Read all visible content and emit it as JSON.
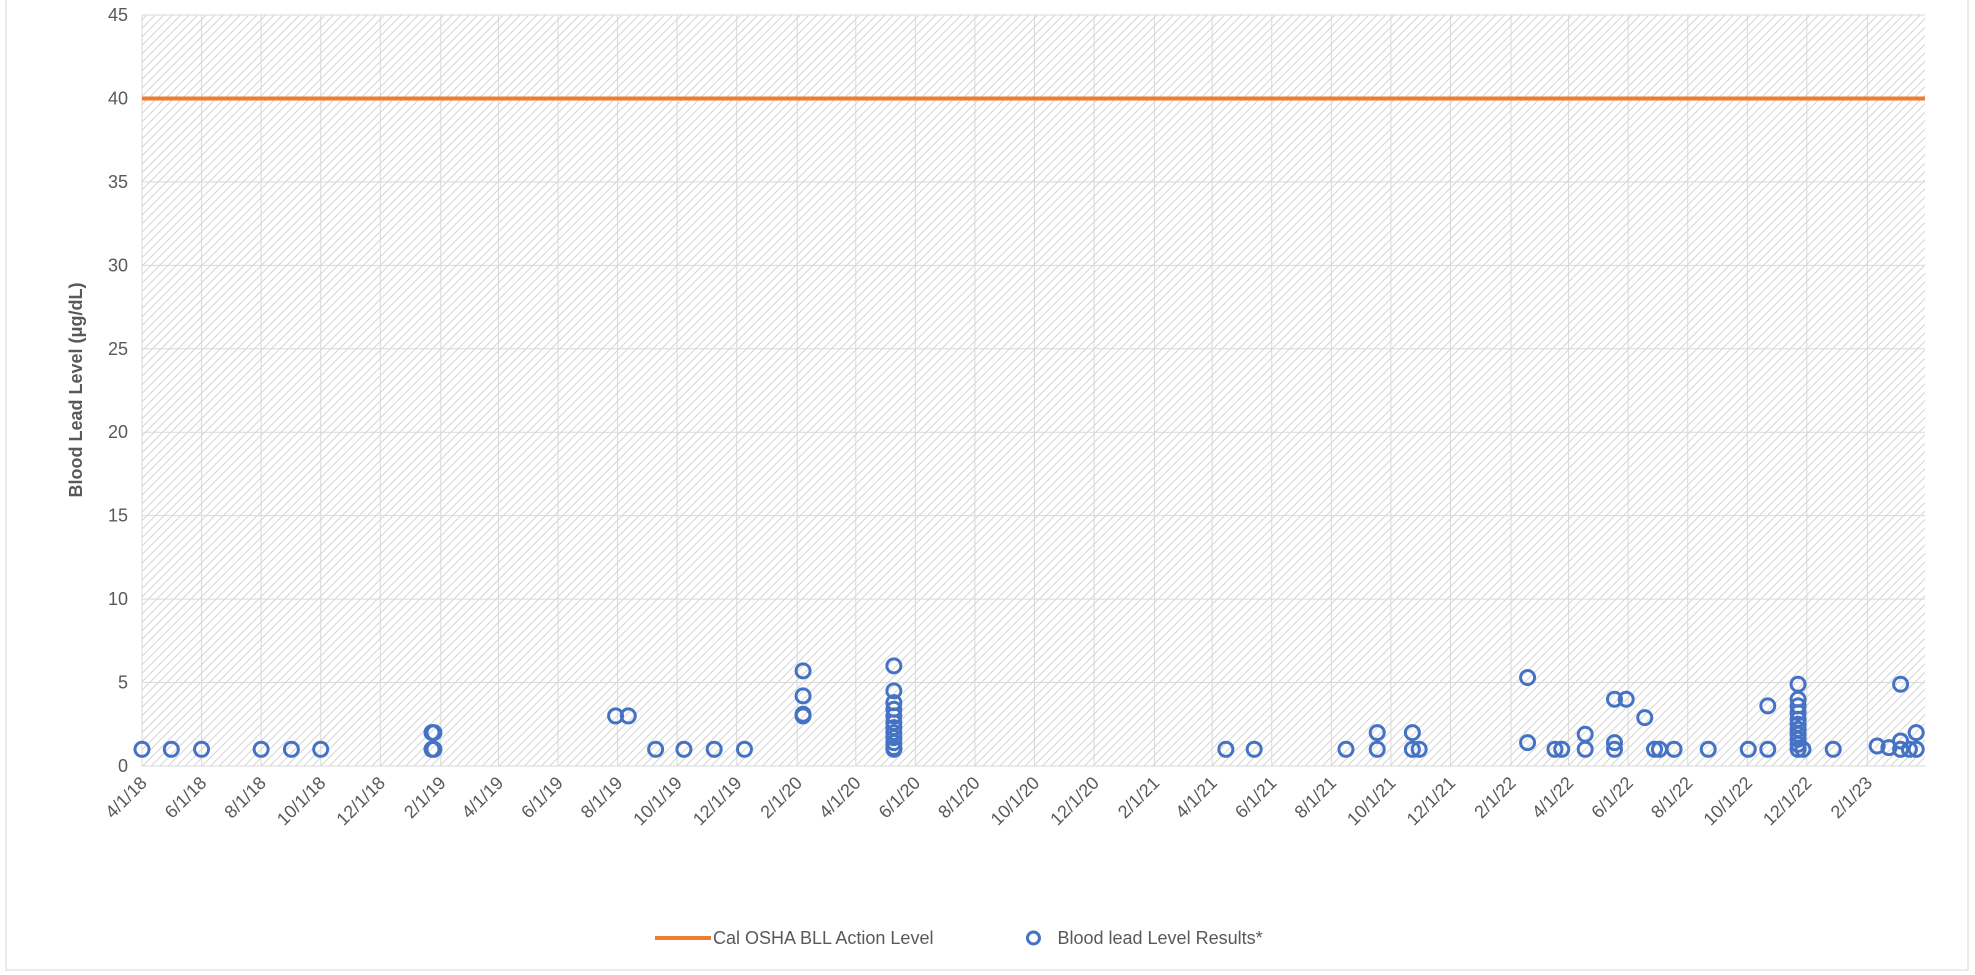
{
  "chart_data": {
    "type": "scatter",
    "y_label": "Blood Lead Level (μg/dL)",
    "xlim": [
      "2018-04-01",
      "2023-04-01"
    ],
    "xticks": [
      {
        "value": "2018-04-01",
        "label": "4/1/18"
      },
      {
        "value": "2018-06-01",
        "label": "6/1/18"
      },
      {
        "value": "2018-08-01",
        "label": "8/1/18"
      },
      {
        "value": "2018-10-01",
        "label": "10/1/18"
      },
      {
        "value": "2018-12-01",
        "label": "12/1/18"
      },
      {
        "value": "2019-02-01",
        "label": "2/1/19"
      },
      {
        "value": "2019-04-01",
        "label": "4/1/19"
      },
      {
        "value": "2019-06-01",
        "label": "6/1/19"
      },
      {
        "value": "2019-08-01",
        "label": "8/1/19"
      },
      {
        "value": "2019-10-01",
        "label": "10/1/19"
      },
      {
        "value": "2019-12-01",
        "label": "12/1/19"
      },
      {
        "value": "2020-02-01",
        "label": "2/1/20"
      },
      {
        "value": "2020-04-01",
        "label": "4/1/20"
      },
      {
        "value": "2020-06-01",
        "label": "6/1/20"
      },
      {
        "value": "2020-08-01",
        "label": "8/1/20"
      },
      {
        "value": "2020-10-01",
        "label": "10/1/20"
      },
      {
        "value": "2020-12-01",
        "label": "12/1/20"
      },
      {
        "value": "2021-02-01",
        "label": "2/1/21"
      },
      {
        "value": "2021-04-01",
        "label": "4/1/21"
      },
      {
        "value": "2021-06-01",
        "label": "6/1/21"
      },
      {
        "value": "2021-08-01",
        "label": "8/1/21"
      },
      {
        "value": "2021-10-01",
        "label": "10/1/21"
      },
      {
        "value": "2021-12-01",
        "label": "12/1/21"
      },
      {
        "value": "2022-02-01",
        "label": "2/1/22"
      },
      {
        "value": "2022-04-01",
        "label": "4/1/22"
      },
      {
        "value": "2022-06-01",
        "label": "6/1/22"
      },
      {
        "value": "2022-08-01",
        "label": "8/1/22"
      },
      {
        "value": "2022-10-01",
        "label": "10/1/22"
      },
      {
        "value": "2022-12-01",
        "label": "12/1/22"
      },
      {
        "value": "2023-02-01",
        "label": "2/1/23"
      }
    ],
    "ylim": [
      0,
      45
    ],
    "yticks": [
      0,
      5,
      10,
      15,
      20,
      25,
      30,
      35,
      40,
      45
    ],
    "grid": true,
    "legend": "bottom",
    "series": [
      {
        "name": "Cal OSHA BLL Action Level",
        "type": "line",
        "color": "#ed7d31",
        "x": [
          "2018-04-01",
          "2023-04-01"
        ],
        "values": [
          40,
          40
        ]
      },
      {
        "name": "Blood lead Level Results*",
        "type": "scatter",
        "color": "#4472c4",
        "x": [
          "2018-04-01",
          "2018-05-01",
          "2018-06-01",
          "2018-08-01",
          "2018-09-01",
          "2018-10-01",
          "2019-01-23",
          "2019-01-23",
          "2019-01-25",
          "2019-01-25",
          "2019-07-30",
          "2019-08-12",
          "2019-09-09",
          "2019-10-08",
          "2019-11-08",
          "2019-12-09",
          "2020-02-07",
          "2020-02-07",
          "2020-02-07",
          "2020-02-07",
          "2020-05-10",
          "2020-05-10",
          "2020-05-10",
          "2020-05-10",
          "2020-05-10",
          "2020-05-10",
          "2020-05-10",
          "2020-05-10",
          "2020-05-10",
          "2020-05-10",
          "2020-05-10",
          "2020-05-10",
          "2021-04-15",
          "2021-05-14",
          "2021-08-16",
          "2021-09-17",
          "2021-09-17",
          "2021-10-23",
          "2021-10-23",
          "2021-10-30",
          "2022-02-18",
          "2022-02-18",
          "2022-03-18",
          "2022-03-25",
          "2022-04-18",
          "2022-04-18",
          "2022-05-18",
          "2022-05-18",
          "2022-05-18",
          "2022-05-30",
          "2022-06-18",
          "2022-06-28",
          "2022-07-03",
          "2022-07-18",
          "2022-08-22",
          "2022-10-02",
          "2022-10-22",
          "2022-10-22",
          "2022-11-22",
          "2022-11-22",
          "2022-11-22",
          "2022-11-22",
          "2022-11-22",
          "2022-11-22",
          "2022-11-22",
          "2022-11-22",
          "2022-11-22",
          "2022-11-22",
          "2022-11-22",
          "2022-11-27",
          "2022-12-28",
          "2023-02-11",
          "2023-02-23",
          "2023-03-07",
          "2023-03-07",
          "2023-03-07",
          "2023-03-16",
          "2023-03-23",
          "2023-03-23"
        ],
        "values": [
          1,
          1,
          1,
          1,
          1,
          1,
          2,
          1,
          2,
          1,
          3,
          3,
          1,
          1,
          1,
          1,
          5.7,
          4.2,
          3.0,
          3.1,
          6.0,
          4.5,
          3.8,
          3.4,
          3.0,
          2.6,
          2.3,
          2.0,
          1.7,
          1.4,
          1.1,
          1.0,
          1,
          1,
          1,
          2,
          1,
          2,
          1,
          1,
          5.3,
          1.4,
          1,
          1,
          1.9,
          1.0,
          4.0,
          1.4,
          1.0,
          4.0,
          2.9,
          1,
          1,
          1,
          1,
          1,
          3.6,
          1.0,
          4.9,
          4.0,
          3.6,
          3.2,
          2.8,
          2.5,
          2.2,
          1.9,
          1.6,
          1.3,
          1.0,
          1.0,
          1,
          1.2,
          1.1,
          1.0,
          1.5,
          4.9,
          1.0,
          2.0,
          1.0
        ]
      }
    ]
  }
}
